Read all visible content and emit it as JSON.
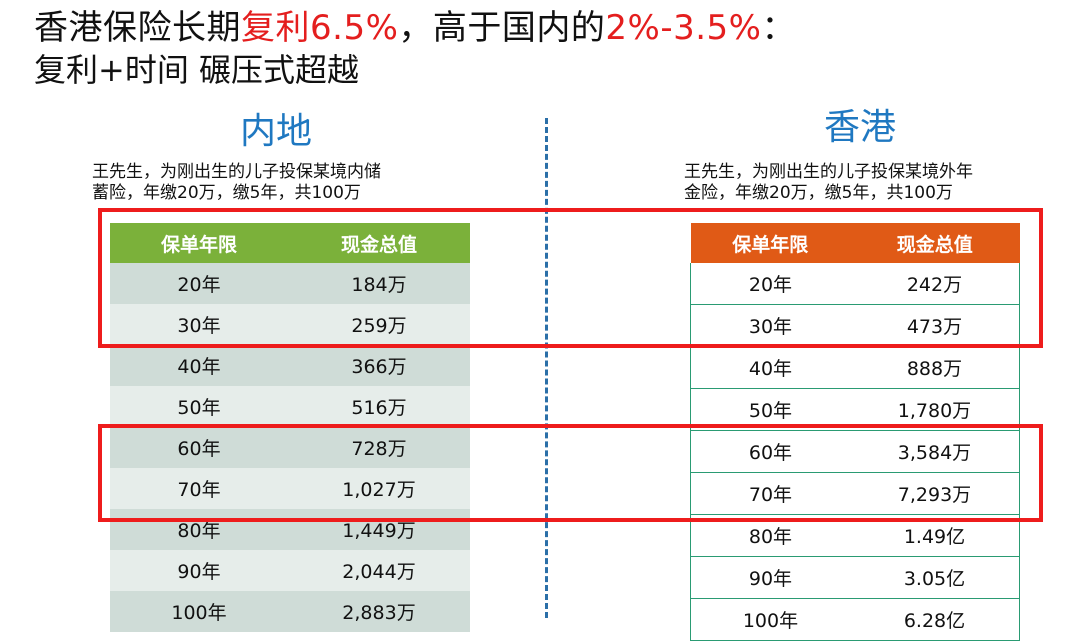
{
  "header": {
    "title_part1": "香港保险长期",
    "title_red1": "复利6.5%",
    "title_part2": "，高于国内的",
    "title_red2": "2%-3.5%",
    "title_part3": "：",
    "subtitle": "复利+时间 碾压式超越"
  },
  "colors": {
    "accent_red": "#e41e1e",
    "heading_blue": "#1f78c1",
    "mainland_header": "#7bb13a",
    "hongkong_header": "#e05a16",
    "highlight_box": "#ee1c1c"
  },
  "mainland": {
    "heading": "内地",
    "desc_line1": "王先生，为刚出生的儿子投保某境内储",
    "desc_line2": "蓄险，年缴20万，缴5年，共100万",
    "col1": "保单年限",
    "col2": "现金总值",
    "rows": [
      {
        "year": "20年",
        "value": "184万"
      },
      {
        "year": "30年",
        "value": "259万"
      },
      {
        "year": "40年",
        "value": "366万"
      },
      {
        "year": "50年",
        "value": "516万"
      },
      {
        "year": "60年",
        "value": "728万"
      },
      {
        "year": "70年",
        "value": "1,027万"
      },
      {
        "year": "80年",
        "value": "1,449万"
      },
      {
        "year": "90年",
        "value": "2,044万"
      },
      {
        "year": "100年",
        "value": "2,883万"
      }
    ]
  },
  "hongkong": {
    "heading": "香港",
    "desc_line1": "王先生，为刚出生的儿子投保某境外年",
    "desc_line2": "金险，年缴20万，缴5年，共100万",
    "col1": "保单年限",
    "col2": "现金总值",
    "rows": [
      {
        "year": "20年",
        "value": "242万"
      },
      {
        "year": "30年",
        "value": "473万"
      },
      {
        "year": "40年",
        "value": "888万"
      },
      {
        "year": "50年",
        "value": "1,780万"
      },
      {
        "year": "60年",
        "value": "3,584万"
      },
      {
        "year": "70年",
        "value": "7,293万"
      },
      {
        "year": "80年",
        "value": "1.49亿"
      },
      {
        "year": "90年",
        "value": "3.05亿"
      },
      {
        "year": "100年",
        "value": "6.28亿"
      }
    ]
  }
}
